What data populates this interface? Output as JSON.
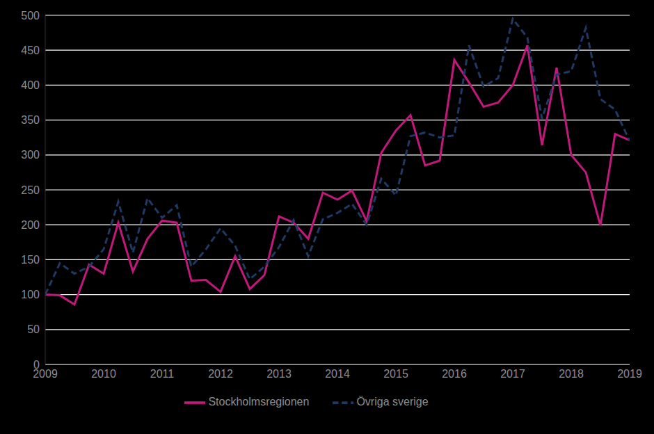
{
  "chart_data": {
    "type": "line",
    "x": [
      2009,
      2009.25,
      2009.5,
      2009.75,
      2010,
      2010.25,
      2010.5,
      2010.75,
      2011,
      2011.25,
      2011.5,
      2011.75,
      2012,
      2012.25,
      2012.5,
      2012.75,
      2013,
      2013.25,
      2013.5,
      2013.75,
      2014,
      2014.25,
      2014.5,
      2014.75,
      2015,
      2015.25,
      2015.5,
      2015.75,
      2016,
      2016.25,
      2016.5,
      2016.75,
      2017,
      2017.25,
      2017.5,
      2017.75,
      2018,
      2018.25,
      2018.5,
      2018.75,
      2019
    ],
    "series": [
      {
        "name": "Stockholmsregionen",
        "color": "#c2187c",
        "line_style": "solid",
        "values": [
          100,
          99,
          86,
          143,
          130,
          203,
          133,
          180,
          206,
          203,
          120,
          121,
          104,
          155,
          108,
          128,
          212,
          203,
          180,
          246,
          236,
          249,
          205,
          303,
          335,
          357,
          285,
          292,
          436,
          404,
          369,
          375,
          400,
          457,
          314,
          425,
          300,
          275,
          199,
          330,
          321
        ]
      },
      {
        "name": "Övriga sverige",
        "color": "#1f3864",
        "line_style": "dashed",
        "values": [
          100,
          145,
          130,
          140,
          165,
          233,
          160,
          238,
          210,
          228,
          140,
          165,
          195,
          170,
          122,
          140,
          168,
          207,
          155,
          208,
          217,
          230,
          200,
          266,
          242,
          327,
          332,
          325,
          328,
          457,
          398,
          410,
          495,
          468,
          352,
          415,
          420,
          482,
          380,
          365,
          320
        ]
      }
    ],
    "xlim": [
      2009,
      2019
    ],
    "xticks": [
      2009,
      2010,
      2011,
      2012,
      2013,
      2014,
      2015,
      2016,
      2017,
      2018,
      2019
    ],
    "ylim": [
      0,
      500
    ],
    "yticks": [
      0,
      50,
      100,
      150,
      200,
      250,
      300,
      350,
      400,
      450,
      500
    ],
    "grid": true,
    "legend": "bottom"
  }
}
